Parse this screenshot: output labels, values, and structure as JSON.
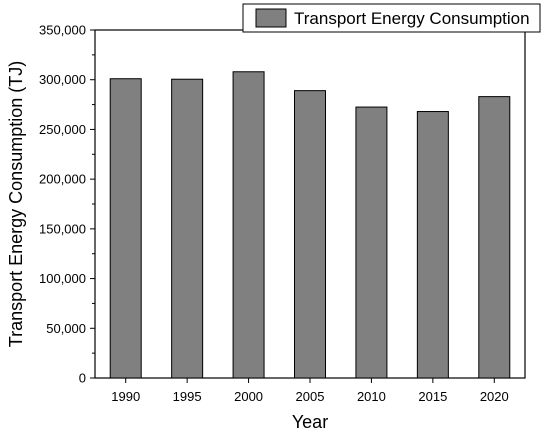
{
  "chart_data": {
    "type": "bar",
    "categories": [
      "1990",
      "1995",
      "2000",
      "2005",
      "2010",
      "2015",
      "2020"
    ],
    "series": [
      {
        "name": "Transport Energy Consumption",
        "values": [
          301000,
          300500,
          308000,
          289000,
          272500,
          268000,
          283000
        ],
        "color": "#808080"
      }
    ],
    "title": "",
    "xlabel": "Year",
    "ylabel": "Transport Energy Consumption (TJ)",
    "ylim": [
      0,
      350000
    ],
    "yticks": [
      0,
      50000,
      100000,
      150000,
      200000,
      250000,
      300000,
      350000
    ],
    "ytick_labels": [
      "0",
      "50,000",
      "100,000",
      "150,000",
      "200,000",
      "250,000",
      "300,000",
      "350,000"
    ],
    "grid": false,
    "legend_position": "top-right"
  }
}
